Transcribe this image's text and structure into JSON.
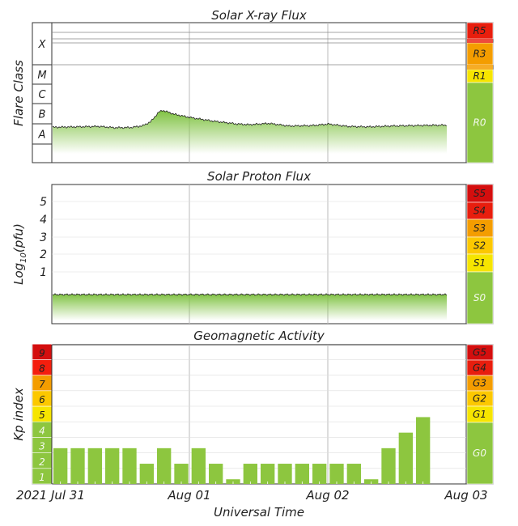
{
  "chart_data": [
    {
      "type": "area",
      "title": "Solar X-ray Flux",
      "ylabel": "Flare Class",
      "flare_classes": [
        "A",
        "B",
        "C",
        "M",
        "X"
      ],
      "scale_categories": [
        "R0",
        "R1",
        "R3",
        "R5"
      ],
      "scale_colors": {
        "R0": "#8dc63f",
        "R1": "#f6e500",
        "R3": "#f49d00",
        "R5": "#e81e0e"
      },
      "series_level_class": [
        [
          0.0,
          0.1
        ],
        [
          0.06,
          0.12
        ],
        [
          0.12,
          0.14
        ],
        [
          0.16,
          0.08
        ],
        [
          0.2,
          0.09
        ],
        [
          0.23,
          0.17
        ],
        [
          0.25,
          0.35
        ],
        [
          0.27,
          0.78
        ],
        [
          0.28,
          0.88
        ],
        [
          0.31,
          0.7
        ],
        [
          0.35,
          0.55
        ],
        [
          0.41,
          0.38
        ],
        [
          0.47,
          0.25
        ],
        [
          0.5,
          0.22
        ],
        [
          0.55,
          0.28
        ],
        [
          0.6,
          0.16
        ],
        [
          0.66,
          0.18
        ],
        [
          0.7,
          0.25
        ],
        [
          0.75,
          0.14
        ],
        [
          0.8,
          0.12
        ],
        [
          0.86,
          0.16
        ],
        [
          0.92,
          0.18
        ],
        [
          0.95,
          0.19
        ],
        [
          1.0,
          0.2
        ]
      ]
    },
    {
      "type": "area",
      "title": "Solar Proton Flux",
      "ylabel": "Log10(pfu)",
      "ylabel_main": "Log",
      "ylabel_sub": "10",
      "ylabel_rest": "(pfu)",
      "yticks": [
        "1",
        "2",
        "3",
        "4",
        "5"
      ],
      "scale_categories": [
        "S0",
        "S1",
        "S2",
        "S3",
        "S4",
        "S5"
      ],
      "scale_colors": {
        "S0": "#8dc63f",
        "S1": "#f6e500",
        "S2": "#fcc800",
        "S3": "#f49d00",
        "S4": "#e81e0e",
        "S5": "#d40e0e"
      },
      "log_pfu_approx": -0.7
    },
    {
      "type": "bar",
      "title": "Geomagnetic Activity",
      "ylabel": "Kp index",
      "yticks": [
        "1",
        "2",
        "3",
        "4",
        "5",
        "6",
        "7",
        "8",
        "9"
      ],
      "tick_colors": [
        "#8dc63f",
        "#8dc63f",
        "#8dc63f",
        "#8dc63f",
        "#f6e500",
        "#fcc800",
        "#f49d00",
        "#f41e0e",
        "#d40e0e"
      ],
      "scale_categories": [
        "G0",
        "G1",
        "G2",
        "G3",
        "G4",
        "G5"
      ],
      "scale_colors": {
        "G0": "#8dc63f",
        "G1": "#f6e500",
        "G2": "#fcc800",
        "G3": "#f49d00",
        "G4": "#e81e0e",
        "G5": "#d40e0e"
      },
      "kp_values": [
        2.3,
        2.3,
        2.3,
        2.3,
        2.3,
        1.3,
        2.3,
        1.3,
        2.3,
        1.3,
        0.3,
        1.3,
        1.3,
        1.3,
        1.3,
        1.3,
        1.3,
        1.3,
        0.3,
        2.3,
        3.3,
        4.3
      ],
      "x_ticks": [
        "2021 Jul 31",
        "Aug 01",
        "Aug 02",
        "Aug 03"
      ],
      "xlabel": "Universal Time"
    }
  ],
  "grid": true
}
